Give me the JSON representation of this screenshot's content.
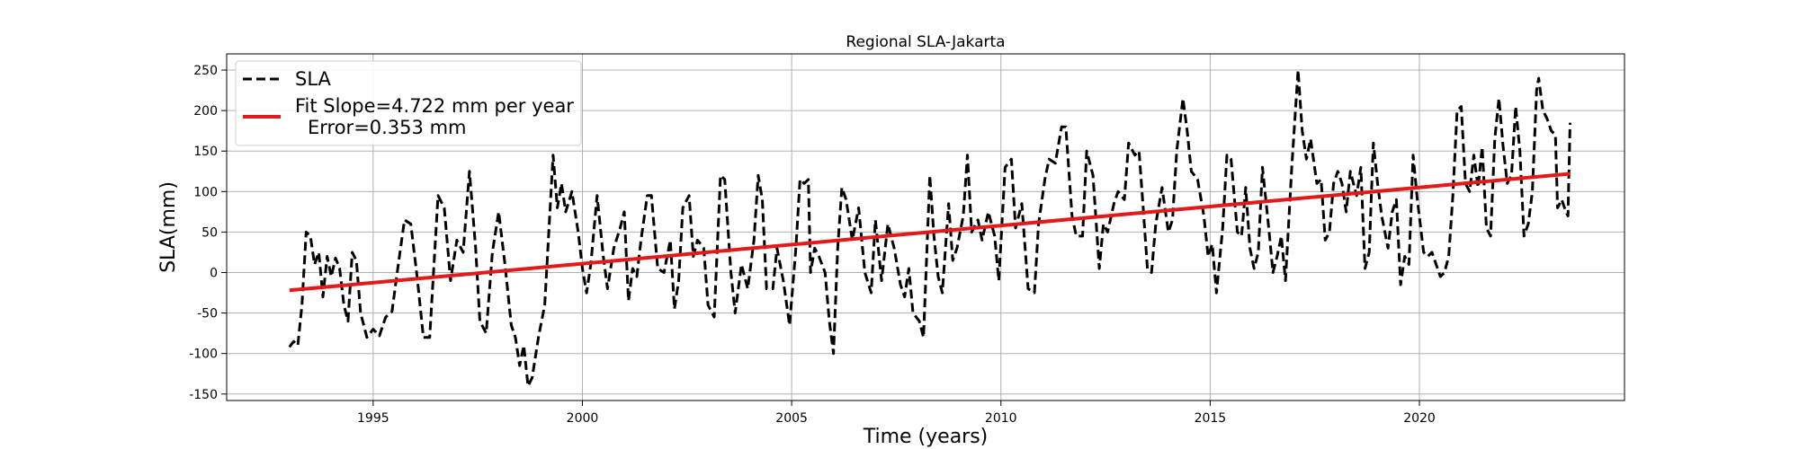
{
  "chart_data": {
    "type": "line",
    "title": "Regional SLA-Jakarta",
    "xlabel": "Time (years)",
    "ylabel": "SLA(mm)",
    "xlim": [
      1991.5,
      2024.9
    ],
    "ylim": [
      -158,
      270
    ],
    "xticks": [
      1995,
      2000,
      2005,
      2010,
      2015,
      2020
    ],
    "yticks": [
      -150,
      -100,
      -50,
      0,
      50,
      100,
      150,
      200,
      250
    ],
    "grid": true,
    "legend": {
      "location": "upper-left",
      "entries": [
        {
          "label": "SLA",
          "style": "dashed",
          "color": "#000000"
        },
        {
          "label": "Fit Slope=4.722 mm per year",
          "label2": "Error=0.353 mm",
          "style": "solid",
          "color": "#e31a1c"
        }
      ]
    },
    "series": [
      {
        "name": "SLA",
        "style": "dashed",
        "color": "#000000",
        "points": [
          [
            1993.0,
            -92
          ],
          [
            1993.1,
            -85
          ],
          [
            1993.2,
            -90
          ],
          [
            1993.3,
            -40
          ],
          [
            1993.4,
            50
          ],
          [
            1993.5,
            45
          ],
          [
            1993.6,
            10
          ],
          [
            1993.7,
            25
          ],
          [
            1993.8,
            -30
          ],
          [
            1993.9,
            20
          ],
          [
            1994.0,
            -5
          ],
          [
            1994.1,
            18
          ],
          [
            1994.2,
            5
          ],
          [
            1994.3,
            -40
          ],
          [
            1994.4,
            -60
          ],
          [
            1994.5,
            25
          ],
          [
            1994.6,
            15
          ],
          [
            1994.7,
            -50
          ],
          [
            1994.85,
            -80
          ],
          [
            1995.0,
            -70
          ],
          [
            1995.15,
            -78
          ],
          [
            1995.3,
            -55
          ],
          [
            1995.45,
            -48
          ],
          [
            1995.6,
            10
          ],
          [
            1995.75,
            65
          ],
          [
            1995.9,
            60
          ],
          [
            1996.05,
            -5
          ],
          [
            1996.2,
            -80
          ],
          [
            1996.35,
            -80
          ],
          [
            1996.55,
            95
          ],
          [
            1996.7,
            80
          ],
          [
            1996.85,
            -10
          ],
          [
            1997.0,
            40
          ],
          [
            1997.15,
            25
          ],
          [
            1997.3,
            125
          ],
          [
            1997.45,
            30
          ],
          [
            1997.55,
            -60
          ],
          [
            1997.7,
            -75
          ],
          [
            1997.85,
            25
          ],
          [
            1998.0,
            75
          ],
          [
            1998.15,
            10
          ],
          [
            1998.3,
            -65
          ],
          [
            1998.4,
            -80
          ],
          [
            1998.5,
            -115
          ],
          [
            1998.6,
            -90
          ],
          [
            1998.7,
            -140
          ],
          [
            1998.8,
            -130
          ],
          [
            1998.95,
            -80
          ],
          [
            1999.1,
            -40
          ],
          [
            1999.3,
            145
          ],
          [
            1999.4,
            80
          ],
          [
            1999.5,
            110
          ],
          [
            1999.6,
            75
          ],
          [
            1999.75,
            100
          ],
          [
            1999.9,
            50
          ],
          [
            2000.0,
            5
          ],
          [
            2000.1,
            -25
          ],
          [
            2000.2,
            10
          ],
          [
            2000.35,
            95
          ],
          [
            2000.5,
            20
          ],
          [
            2000.6,
            -20
          ],
          [
            2000.75,
            30
          ],
          [
            2000.9,
            55
          ],
          [
            2001.0,
            75
          ],
          [
            2001.1,
            -35
          ],
          [
            2001.2,
            5
          ],
          [
            2001.3,
            -5
          ],
          [
            2001.4,
            40
          ],
          [
            2001.55,
            95
          ],
          [
            2001.65,
            95
          ],
          [
            2001.8,
            5
          ],
          [
            2001.95,
            0
          ],
          [
            2002.1,
            40
          ],
          [
            2002.2,
            -45
          ],
          [
            2002.3,
            -10
          ],
          [
            2002.4,
            80
          ],
          [
            2002.55,
            95
          ],
          [
            2002.65,
            20
          ],
          [
            2002.75,
            40
          ],
          [
            2002.9,
            30
          ],
          [
            2003.0,
            -40
          ],
          [
            2003.15,
            -55
          ],
          [
            2003.3,
            120
          ],
          [
            2003.4,
            115
          ],
          [
            2003.55,
            0
          ],
          [
            2003.65,
            -50
          ],
          [
            2003.8,
            10
          ],
          [
            2003.95,
            -20
          ],
          [
            2004.1,
            40
          ],
          [
            2004.2,
            120
          ],
          [
            2004.3,
            90
          ],
          [
            2004.4,
            -20
          ],
          [
            2004.55,
            -20
          ],
          [
            2004.65,
            30
          ],
          [
            2004.8,
            -10
          ],
          [
            2004.95,
            -65
          ],
          [
            2005.1,
            30
          ],
          [
            2005.2,
            115
          ],
          [
            2005.3,
            110
          ],
          [
            2005.4,
            115
          ],
          [
            2005.45,
            0
          ],
          [
            2005.55,
            30
          ],
          [
            2005.65,
            20
          ],
          [
            2005.8,
            0
          ],
          [
            2005.9,
            -60
          ],
          [
            2006.0,
            -100
          ],
          [
            2006.1,
            30
          ],
          [
            2006.2,
            105
          ],
          [
            2006.3,
            90
          ],
          [
            2006.45,
            40
          ],
          [
            2006.6,
            80
          ],
          [
            2006.75,
            0
          ],
          [
            2006.9,
            -25
          ],
          [
            2007.0,
            65
          ],
          [
            2007.15,
            -10
          ],
          [
            2007.3,
            60
          ],
          [
            2007.45,
            30
          ],
          [
            2007.6,
            -15
          ],
          [
            2007.7,
            -30
          ],
          [
            2007.8,
            5
          ],
          [
            2007.9,
            -50
          ],
          [
            2008.05,
            -60
          ],
          [
            2008.15,
            -80
          ],
          [
            2008.3,
            120
          ],
          [
            2008.4,
            45
          ],
          [
            2008.5,
            -5
          ],
          [
            2008.6,
            -25
          ],
          [
            2008.75,
            85
          ],
          [
            2008.85,
            15
          ],
          [
            2008.95,
            30
          ],
          [
            2009.1,
            70
          ],
          [
            2009.2,
            145
          ],
          [
            2009.3,
            50
          ],
          [
            2009.45,
            65
          ],
          [
            2009.55,
            40
          ],
          [
            2009.7,
            75
          ],
          [
            2009.85,
            45
          ],
          [
            2009.95,
            -10
          ],
          [
            2010.1,
            130
          ],
          [
            2010.25,
            140
          ],
          [
            2010.35,
            55
          ],
          [
            2010.5,
            85
          ],
          [
            2010.65,
            -20
          ],
          [
            2010.8,
            -25
          ],
          [
            2010.9,
            60
          ],
          [
            2011.05,
            115
          ],
          [
            2011.15,
            140
          ],
          [
            2011.3,
            135
          ],
          [
            2011.45,
            180
          ],
          [
            2011.55,
            180
          ],
          [
            2011.7,
            70
          ],
          [
            2011.8,
            45
          ],
          [
            2011.95,
            45
          ],
          [
            2012.05,
            150
          ],
          [
            2012.2,
            120
          ],
          [
            2012.35,
            5
          ],
          [
            2012.45,
            60
          ],
          [
            2012.55,
            50
          ],
          [
            2012.7,
            85
          ],
          [
            2012.8,
            100
          ],
          [
            2012.95,
            90
          ],
          [
            2013.05,
            160
          ],
          [
            2013.2,
            145
          ],
          [
            2013.3,
            150
          ],
          [
            2013.4,
            80
          ],
          [
            2013.5,
            5
          ],
          [
            2013.6,
            0
          ],
          [
            2013.7,
            60
          ],
          [
            2013.85,
            105
          ],
          [
            2014.0,
            50
          ],
          [
            2014.1,
            65
          ],
          [
            2014.2,
            150
          ],
          [
            2014.35,
            215
          ],
          [
            2014.45,
            175
          ],
          [
            2014.55,
            125
          ],
          [
            2014.7,
            115
          ],
          [
            2014.85,
            70
          ],
          [
            2014.95,
            20
          ],
          [
            2015.05,
            35
          ],
          [
            2015.15,
            -25
          ],
          [
            2015.3,
            55
          ],
          [
            2015.4,
            145
          ],
          [
            2015.5,
            140
          ],
          [
            2015.65,
            50
          ],
          [
            2015.75,
            45
          ],
          [
            2015.85,
            105
          ],
          [
            2015.95,
            30
          ],
          [
            2016.05,
            5
          ],
          [
            2016.15,
            25
          ],
          [
            2016.25,
            130
          ],
          [
            2016.4,
            55
          ],
          [
            2016.5,
            0
          ],
          [
            2016.6,
            20
          ],
          [
            2016.7,
            45
          ],
          [
            2016.8,
            -10
          ],
          [
            2016.95,
            130
          ],
          [
            2017.1,
            250
          ],
          [
            2017.2,
            175
          ],
          [
            2017.3,
            140
          ],
          [
            2017.4,
            165
          ],
          [
            2017.55,
            110
          ],
          [
            2017.65,
            115
          ],
          [
            2017.75,
            40
          ],
          [
            2017.85,
            50
          ],
          [
            2017.95,
            110
          ],
          [
            2018.05,
            125
          ],
          [
            2018.15,
            110
          ],
          [
            2018.25,
            75
          ],
          [
            2018.35,
            125
          ],
          [
            2018.5,
            95
          ],
          [
            2018.6,
            130
          ],
          [
            2018.7,
            5
          ],
          [
            2018.8,
            25
          ],
          [
            2018.9,
            160
          ],
          [
            2019.0,
            110
          ],
          [
            2019.1,
            70
          ],
          [
            2019.25,
            30
          ],
          [
            2019.35,
            75
          ],
          [
            2019.45,
            90
          ],
          [
            2019.55,
            -15
          ],
          [
            2019.65,
            20
          ],
          [
            2019.75,
            10
          ],
          [
            2019.85,
            145
          ],
          [
            2019.95,
            90
          ],
          [
            2020.1,
            25
          ],
          [
            2020.2,
            20
          ],
          [
            2020.3,
            25
          ],
          [
            2020.4,
            10
          ],
          [
            2020.5,
            -5
          ],
          [
            2020.6,
            0
          ],
          [
            2020.7,
            20
          ],
          [
            2020.8,
            95
          ],
          [
            2020.9,
            200
          ],
          [
            2021.0,
            205
          ],
          [
            2021.1,
            110
          ],
          [
            2021.2,
            100
          ],
          [
            2021.3,
            145
          ],
          [
            2021.4,
            105
          ],
          [
            2021.5,
            155
          ],
          [
            2021.6,
            55
          ],
          [
            2021.7,
            45
          ],
          [
            2021.8,
            165
          ],
          [
            2021.9,
            215
          ],
          [
            2022.0,
            155
          ],
          [
            2022.1,
            110
          ],
          [
            2022.2,
            120
          ],
          [
            2022.3,
            205
          ],
          [
            2022.4,
            150
          ],
          [
            2022.5,
            45
          ],
          [
            2022.6,
            60
          ],
          [
            2022.7,
            100
          ],
          [
            2022.8,
            225
          ],
          [
            2022.85,
            240
          ],
          [
            2022.95,
            200
          ],
          [
            2023.05,
            190
          ],
          [
            2023.15,
            175
          ],
          [
            2023.25,
            170
          ],
          [
            2023.3,
            80
          ],
          [
            2023.4,
            90
          ],
          [
            2023.5,
            75
          ],
          [
            2023.55,
            70
          ],
          [
            2023.6,
            185
          ]
        ]
      },
      {
        "name": "Fit Slope=4.722 mm per year",
        "style": "solid",
        "color": "#e31a1c",
        "points": [
          [
            1993.0,
            -22
          ],
          [
            2023.6,
            122
          ]
        ]
      }
    ]
  }
}
